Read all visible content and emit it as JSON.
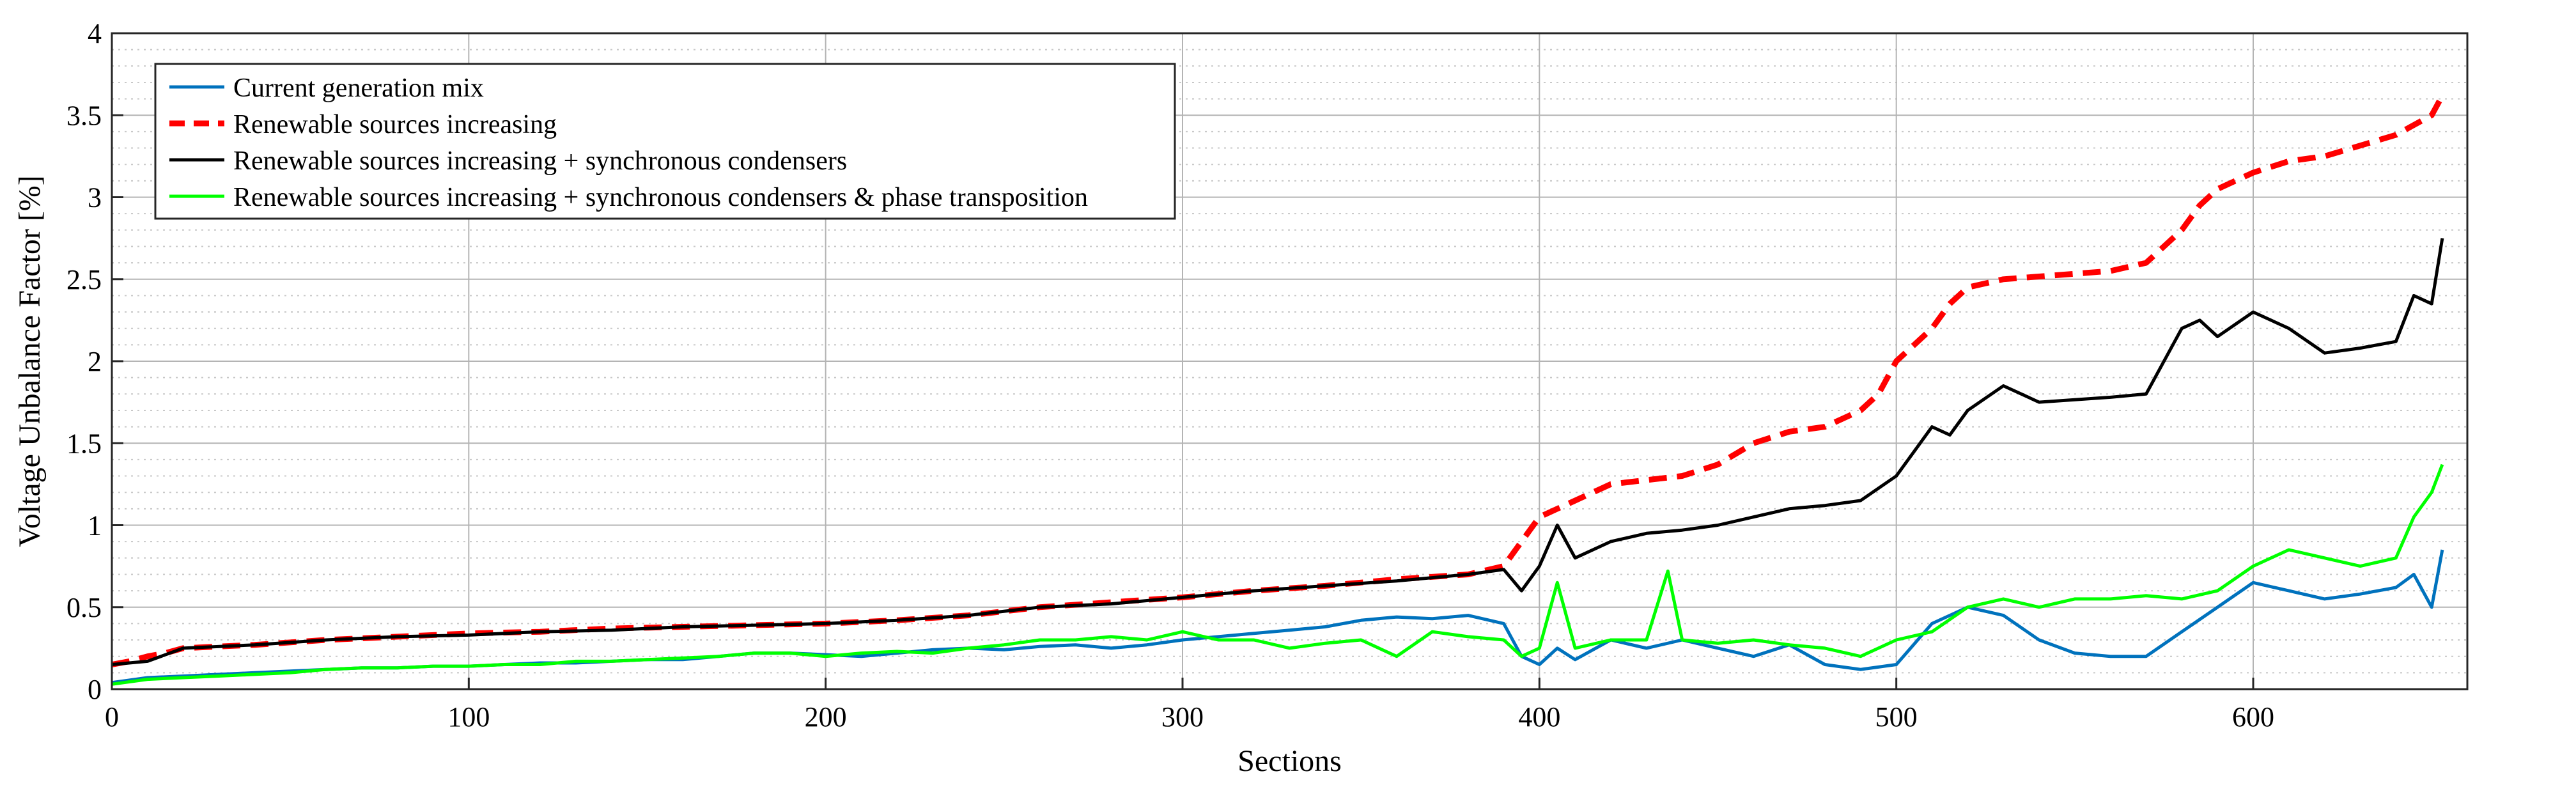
{
  "chart_data": {
    "type": "line",
    "title": "",
    "xlabel": "Sections",
    "ylabel": "Voltage Unbalance Factor [%]",
    "xlim": [
      0,
      660
    ],
    "ylim": [
      0,
      4
    ],
    "xticks": [
      0,
      100,
      200,
      300,
      400,
      500,
      600
    ],
    "yticks": [
      0,
      0.5,
      1,
      1.5,
      2,
      2.5,
      3,
      3.5,
      4
    ],
    "ytick_labels": [
      "0",
      "0.5",
      "1",
      "1.5",
      "2",
      "2.5",
      "3",
      "3.5",
      "4"
    ],
    "grid": true,
    "minor_grid_y": true,
    "legend_position": "top-left",
    "series": [
      {
        "name": "Current generation mix",
        "color": "#0072BD",
        "style": "solid",
        "x": [
          0,
          10,
          20,
          30,
          40,
          50,
          60,
          70,
          80,
          90,
          100,
          110,
          120,
          130,
          140,
          150,
          160,
          170,
          180,
          190,
          200,
          210,
          220,
          230,
          240,
          250,
          260,
          270,
          280,
          290,
          300,
          310,
          320,
          330,
          340,
          350,
          360,
          370,
          380,
          390,
          395,
          400,
          405,
          410,
          420,
          430,
          440,
          450,
          460,
          470,
          480,
          490,
          500,
          510,
          520,
          530,
          540,
          550,
          560,
          570,
          580,
          590,
          600,
          610,
          620,
          630,
          640,
          645,
          650,
          653
        ],
        "y": [
          0.04,
          0.07,
          0.08,
          0.09,
          0.1,
          0.11,
          0.12,
          0.13,
          0.13,
          0.14,
          0.14,
          0.15,
          0.16,
          0.16,
          0.17,
          0.18,
          0.18,
          0.2,
          0.22,
          0.22,
          0.21,
          0.2,
          0.22,
          0.24,
          0.25,
          0.24,
          0.26,
          0.27,
          0.25,
          0.27,
          0.3,
          0.32,
          0.34,
          0.36,
          0.38,
          0.42,
          0.44,
          0.43,
          0.45,
          0.4,
          0.2,
          0.15,
          0.25,
          0.18,
          0.3,
          0.25,
          0.3,
          0.25,
          0.2,
          0.27,
          0.15,
          0.12,
          0.15,
          0.4,
          0.5,
          0.45,
          0.3,
          0.22,
          0.2,
          0.2,
          0.35,
          0.5,
          0.65,
          0.6,
          0.55,
          0.58,
          0.62,
          0.7,
          0.5,
          0.85
        ]
      },
      {
        "name": "Renewable sources increasing",
        "color": "#FF0000",
        "style": "dashed",
        "x": [
          0,
          5,
          10,
          15,
          20,
          40,
          60,
          80,
          100,
          120,
          140,
          160,
          180,
          200,
          220,
          240,
          260,
          280,
          300,
          320,
          340,
          360,
          380,
          390,
          395,
          400,
          410,
          420,
          440,
          450,
          460,
          470,
          480,
          490,
          495,
          500,
          505,
          510,
          515,
          520,
          530,
          560,
          570,
          580,
          585,
          590,
          600,
          610,
          620,
          640,
          650,
          653
        ],
        "y": [
          0.15,
          0.17,
          0.2,
          0.22,
          0.25,
          0.27,
          0.3,
          0.32,
          0.34,
          0.35,
          0.37,
          0.38,
          0.39,
          0.4,
          0.42,
          0.45,
          0.5,
          0.53,
          0.56,
          0.6,
          0.63,
          0.67,
          0.7,
          0.75,
          0.9,
          1.05,
          1.15,
          1.25,
          1.3,
          1.37,
          1.5,
          1.57,
          1.6,
          1.7,
          1.8,
          2.0,
          2.1,
          2.2,
          2.35,
          2.45,
          2.5,
          2.55,
          2.6,
          2.8,
          2.95,
          3.05,
          3.15,
          3.22,
          3.25,
          3.38,
          3.5,
          3.62
        ]
      },
      {
        "name": "Renewable sources increasing + synchronous condensers",
        "color": "#000000",
        "style": "solid",
        "x": [
          0,
          10,
          20,
          40,
          60,
          80,
          100,
          120,
          140,
          160,
          180,
          200,
          220,
          240,
          260,
          280,
          300,
          320,
          340,
          360,
          380,
          390,
          395,
          400,
          405,
          410,
          420,
          430,
          440,
          450,
          460,
          470,
          480,
          490,
          500,
          505,
          510,
          515,
          520,
          530,
          540,
          560,
          570,
          580,
          585,
          590,
          600,
          610,
          620,
          630,
          640,
          645,
          650,
          653
        ],
        "y": [
          0.15,
          0.17,
          0.25,
          0.27,
          0.3,
          0.32,
          0.33,
          0.35,
          0.36,
          0.38,
          0.39,
          0.4,
          0.42,
          0.45,
          0.5,
          0.52,
          0.56,
          0.6,
          0.63,
          0.66,
          0.7,
          0.73,
          0.6,
          0.75,
          1.0,
          0.8,
          0.9,
          0.95,
          0.97,
          1.0,
          1.05,
          1.1,
          1.12,
          1.15,
          1.3,
          1.45,
          1.6,
          1.55,
          1.7,
          1.85,
          1.75,
          1.78,
          1.8,
          2.2,
          2.25,
          2.15,
          2.3,
          2.2,
          2.05,
          2.08,
          2.12,
          2.4,
          2.35,
          2.75
        ]
      },
      {
        "name": "Renewable sources increasing + synchronous condensers & phase transposition",
        "color": "#00FF00",
        "style": "solid",
        "x": [
          0,
          10,
          20,
          30,
          40,
          50,
          60,
          70,
          80,
          90,
          100,
          110,
          120,
          130,
          140,
          150,
          160,
          170,
          180,
          190,
          200,
          210,
          220,
          230,
          240,
          250,
          260,
          270,
          280,
          290,
          300,
          310,
          320,
          330,
          340,
          350,
          360,
          370,
          380,
          390,
          395,
          400,
          405,
          410,
          420,
          430,
          436,
          440,
          450,
          460,
          470,
          480,
          490,
          500,
          510,
          520,
          530,
          540,
          550,
          560,
          570,
          580,
          590,
          600,
          610,
          620,
          630,
          640,
          645,
          650,
          653
        ],
        "y": [
          0.03,
          0.06,
          0.07,
          0.08,
          0.09,
          0.1,
          0.12,
          0.13,
          0.13,
          0.14,
          0.14,
          0.15,
          0.15,
          0.17,
          0.17,
          0.18,
          0.19,
          0.2,
          0.22,
          0.22,
          0.2,
          0.22,
          0.23,
          0.22,
          0.25,
          0.27,
          0.3,
          0.3,
          0.32,
          0.3,
          0.35,
          0.3,
          0.3,
          0.25,
          0.28,
          0.3,
          0.2,
          0.35,
          0.32,
          0.3,
          0.2,
          0.25,
          0.65,
          0.25,
          0.3,
          0.3,
          0.72,
          0.3,
          0.28,
          0.3,
          0.27,
          0.25,
          0.2,
          0.3,
          0.35,
          0.5,
          0.55,
          0.5,
          0.55,
          0.55,
          0.57,
          0.55,
          0.6,
          0.75,
          0.85,
          0.8,
          0.75,
          0.8,
          1.05,
          1.2,
          1.37
        ]
      }
    ]
  }
}
